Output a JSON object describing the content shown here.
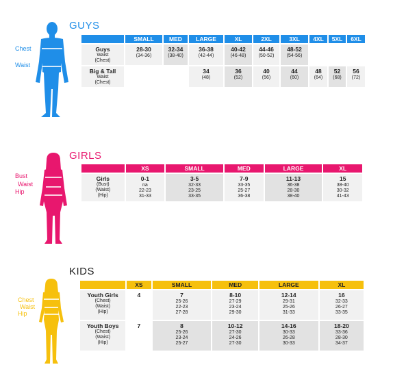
{
  "guys": {
    "title": "GUYS",
    "color": "#1f8ee8",
    "body_labels": [
      "Chest",
      "Waist"
    ],
    "headers": [
      "SMALL",
      "MED",
      "LARGE",
      "XL",
      "2XL",
      "3XL",
      "4XL",
      "5XL",
      "6XL"
    ],
    "rows": [
      {
        "label": "Guys",
        "sub": [
          "Waist",
          "(Chest)"
        ],
        "cells": [
          [
            "28-30",
            "(34-36)"
          ],
          [
            "32-34",
            "(38-40)"
          ],
          [
            "36-38",
            "(42-44)"
          ],
          [
            "40-42",
            "(46-48)"
          ],
          [
            "44-46",
            "(50-52)"
          ],
          [
            "48-52",
            "(54-56)"
          ],
          null,
          null,
          null
        ]
      },
      {
        "label": "Big & Tall",
        "sub": [
          "Waist",
          "(Chest)"
        ],
        "cells": [
          null,
          null,
          [
            "34",
            "(48)"
          ],
          [
            "36",
            "(52)"
          ],
          [
            "40",
            "(56)"
          ],
          [
            "44",
            "(60)"
          ],
          [
            "48",
            "(64)"
          ],
          [
            "52",
            "(68)"
          ],
          [
            "56",
            "(72)"
          ]
        ]
      }
    ]
  },
  "girls": {
    "title": "GIRLS",
    "color": "#e8176e",
    "body_labels": [
      "Bust",
      "Waist",
      "Hip"
    ],
    "headers": [
      "XS",
      "SMALL",
      "MED",
      "LARGE",
      "XL"
    ],
    "rows": [
      {
        "label": "Girls",
        "sub": [
          "(Bust)",
          "(Waist)",
          "(Hip)"
        ],
        "cells": [
          [
            "0-1",
            "na",
            "22-23",
            "31-33"
          ],
          [
            "3-5",
            "32-33",
            "23-25",
            "33-35"
          ],
          [
            "7-9",
            "33-35",
            "25-27",
            "36-38"
          ],
          [
            "11-13",
            "36-38",
            "28-30",
            "38-40"
          ],
          [
            "15",
            "38-40",
            "30-32",
            "41-43"
          ]
        ]
      }
    ]
  },
  "kids": {
    "title": "KIDS",
    "color": "#f6c00d",
    "body_labels": [
      "Chest",
      "Waist",
      "Hip"
    ],
    "headers": [
      "XS",
      "SMALL",
      "MED",
      "LARGE",
      "XL"
    ],
    "rows": [
      {
        "label": "Youth Girls",
        "sub": [
          "(Chest)",
          "(Waist)",
          "(Hip)"
        ],
        "cells": [
          [
            "4"
          ],
          [
            "7",
            "25-26",
            "22-23",
            "27-28"
          ],
          [
            "8-10",
            "27-29",
            "23-24",
            "29-30"
          ],
          [
            "12-14",
            "29-31",
            "25-26",
            "31-33"
          ],
          [
            "16",
            "32-33",
            "26-27",
            "33-35"
          ]
        ]
      },
      {
        "label": "Youth Boys",
        "sub": [
          "(Chest)",
          "(Waist)",
          "(Hip)"
        ],
        "cells": [
          [
            "7"
          ],
          [
            "8",
            "25-26",
            "23-24",
            "25-27"
          ],
          [
            "10-12",
            "27-30",
            "24-26",
            "27-30"
          ],
          [
            "14-16",
            "30-33",
            "26-28",
            "30-33"
          ],
          [
            "18-20",
            "33-36",
            "28-30",
            "34-37"
          ]
        ]
      }
    ]
  }
}
